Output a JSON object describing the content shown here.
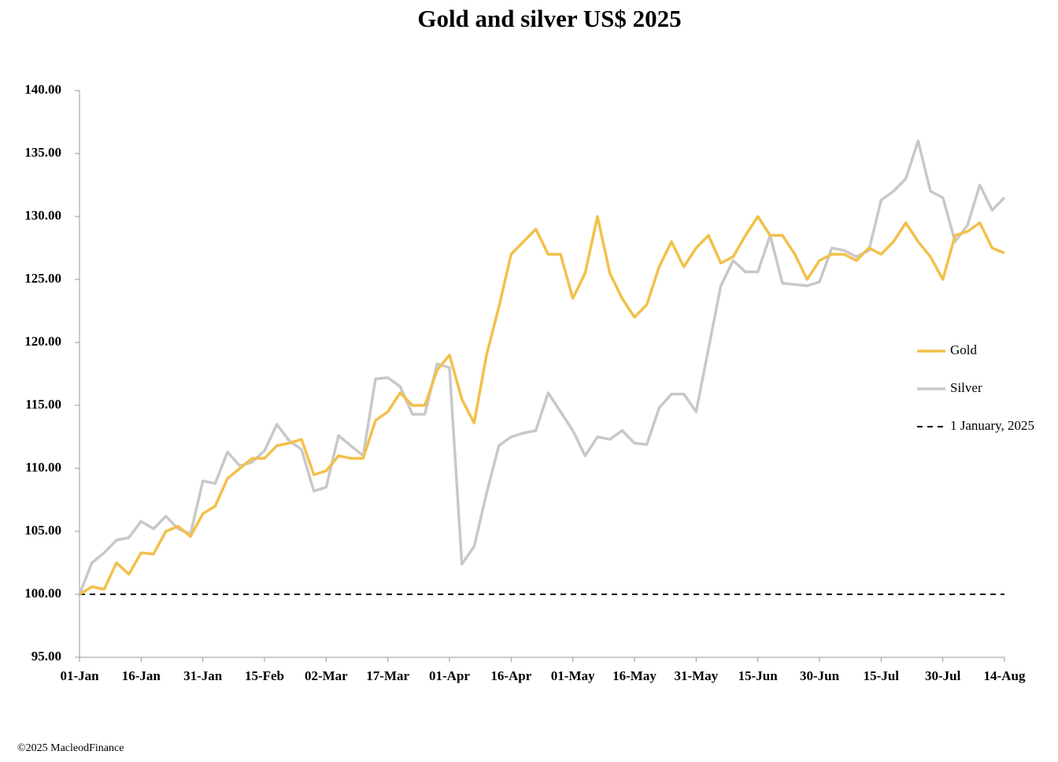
{
  "chart_data": {
    "type": "line",
    "title": "Gold and silver  US$ 2025",
    "footer": "©2025 MacleodFinance",
    "categories": [
      "01-Jan",
      null,
      null,
      null,
      null,
      "16-Jan",
      null,
      null,
      null,
      null,
      "31-Jan",
      null,
      null,
      null,
      null,
      "15-Feb",
      null,
      null,
      null,
      null,
      "02-Mar",
      null,
      null,
      null,
      null,
      "17-Mar",
      null,
      null,
      null,
      null,
      "01-Apr",
      null,
      null,
      null,
      null,
      "16-Apr",
      null,
      null,
      null,
      null,
      "01-May",
      null,
      null,
      null,
      null,
      "16-May",
      null,
      null,
      null,
      null,
      "31-May",
      null,
      null,
      null,
      null,
      "15-Jun",
      null,
      null,
      null,
      null,
      "30-Jun",
      null,
      null,
      null,
      null,
      "15-Jul",
      null,
      null,
      null,
      null,
      "30-Jul",
      null,
      null,
      null,
      null,
      "14-Aug"
    ],
    "series": [
      {
        "name": "Gold",
        "color": "#f2c04a",
        "values": [
          100,
          100.6,
          100.4,
          102.5,
          101.6,
          103.3,
          103.2,
          105,
          105.4,
          104.6,
          106.4,
          107,
          109.2,
          110,
          110.8,
          110.8,
          111.8,
          112,
          112.3,
          109.5,
          109.8,
          111,
          110.8,
          110.8,
          113.8,
          114.5,
          116,
          115,
          115,
          117.8,
          119,
          115.5,
          113.6,
          119,
          122.8,
          127,
          128,
          129,
          127,
          127,
          123.5,
          125.5,
          130,
          125.5,
          123.5,
          122,
          123,
          126,
          128,
          126,
          127.5,
          128.5,
          126.3,
          126.8,
          128.5,
          130,
          128.5,
          128.5,
          127,
          125,
          126.5,
          127,
          127,
          126.5,
          127.5,
          127,
          128,
          129.5,
          128,
          126.8,
          125,
          128.5,
          128.8,
          129.5,
          127.5,
          127.1
        ]
      },
      {
        "name": "Silver",
        "color": "#c8c8c8",
        "values": [
          100,
          102.5,
          103.3,
          104.3,
          104.5,
          105.8,
          105.2,
          106.2,
          105.2,
          104.8,
          109,
          108.8,
          111.3,
          110.2,
          110.5,
          111.4,
          113.5,
          112.2,
          111.5,
          108.2,
          108.5,
          112.6,
          111.8,
          111,
          117.1,
          117.2,
          116.5,
          114.3,
          114.3,
          118.3,
          118,
          102.4,
          103.8,
          108,
          111.8,
          112.5,
          112.8,
          113,
          116,
          114.5,
          113,
          111,
          112.5,
          112.3,
          113,
          112,
          111.9,
          114.8,
          115.9,
          115.9,
          114.5,
          119.5,
          124.5,
          126.5,
          125.6,
          125.6,
          128.5,
          124.7,
          124.6,
          124.5,
          124.8,
          127.5,
          127.3,
          126.8,
          127.3,
          131.3,
          132,
          133,
          136,
          132,
          131.5,
          128,
          129.3,
          132.5,
          130.5,
          131.5
        ]
      }
    ],
    "reference_line": {
      "name": "1 January, 2025",
      "value": 100,
      "color": "#000000",
      "dashed": true
    },
    "ylim": [
      95,
      140
    ],
    "yticks": [
      {
        "value": 95,
        "label": "95.00"
      },
      {
        "value": 100,
        "label": "100.00"
      },
      {
        "value": 105,
        "label": "105.00"
      },
      {
        "value": 110,
        "label": "110.00"
      },
      {
        "value": 115,
        "label": "115.00"
      },
      {
        "value": 120,
        "label": "120.00"
      },
      {
        "value": 125,
        "label": "125.00"
      },
      {
        "value": 130,
        "label": "130.00"
      },
      {
        "value": 135,
        "label": "135.00"
      },
      {
        "value": 140,
        "label": "140.00"
      }
    ],
    "grid": false,
    "legend": "right"
  }
}
